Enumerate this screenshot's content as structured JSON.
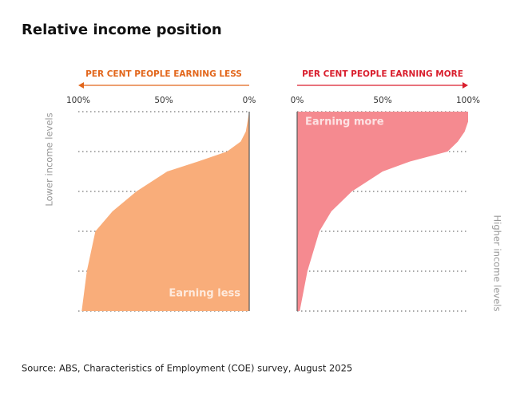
{
  "title": "Relative income position",
  "source": "Source: ABS, Characteristics of Employment (COE) survey, August 2025",
  "chart_data": [
    {
      "type": "area",
      "header": "PER CENT PEOPLE EARNING LESS",
      "ylabel": "Lower income levels",
      "xlim": [
        100,
        0
      ],
      "xticks": [
        {
          "value": 100,
          "label": "100%"
        },
        {
          "value": 50,
          "label": "50%"
        },
        {
          "value": 0,
          "label": "0%"
        }
      ],
      "ylim": [
        0,
        100
      ],
      "yticks": [
        0,
        20,
        40,
        60,
        80,
        100
      ],
      "grid": true,
      "x": [
        0,
        5,
        10,
        15,
        20,
        25,
        30,
        40,
        50,
        60,
        80,
        100
      ],
      "series": [
        {
          "name": "Earning less",
          "color": "#f9ad7a",
          "values": [
            0,
            1,
            2,
            5,
            13,
            30,
            48,
            66,
            80,
            90,
            95,
            98
          ]
        }
      ],
      "accent": "#e2661b"
    },
    {
      "type": "area",
      "header": "PER CENT PEOPLE EARNING MORE",
      "ylabel": "Higher income levels",
      "xlim": [
        0,
        100
      ],
      "xticks": [
        {
          "value": 0,
          "label": "0%"
        },
        {
          "value": 50,
          "label": "50%"
        },
        {
          "value": 100,
          "label": "100%"
        }
      ],
      "ylim": [
        0,
        100
      ],
      "yticks": [
        0,
        20,
        40,
        60,
        80,
        100
      ],
      "grid": true,
      "x": [
        0,
        5,
        10,
        15,
        20,
        25,
        30,
        40,
        50,
        60,
        80,
        100
      ],
      "series": [
        {
          "name": "Earning more",
          "color": "#f58a90",
          "values": [
            100,
            100,
            98,
            94,
            88,
            66,
            50,
            32,
            20,
            13,
            6,
            1.5
          ]
        }
      ],
      "accent": "#d91f2e"
    }
  ]
}
